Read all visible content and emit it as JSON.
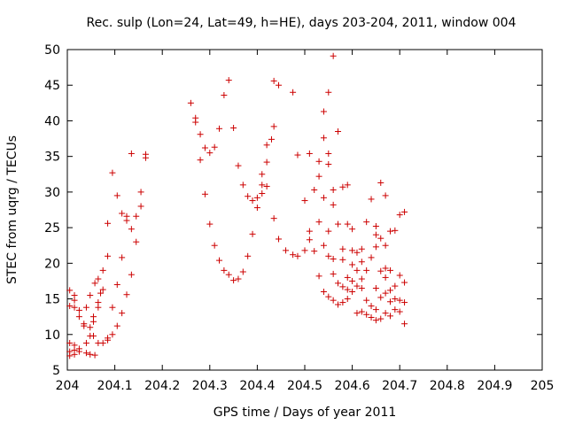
{
  "chart_data": {
    "type": "scatter",
    "title": "Rec. sulp (Lon=24, Lat=49, h=HE), days 203-204, 2011, window 004",
    "xlabel": "GPS time / Days of year 2011",
    "ylabel": "STEC from uqrg / TECUs",
    "xlim": [
      204,
      205
    ],
    "ylim": [
      5,
      50
    ],
    "xticks": [
      "204",
      "204.1",
      "204.2",
      "204.3",
      "204.4",
      "204.5",
      "204.6",
      "204.7",
      "204.8",
      "204.9",
      "205"
    ],
    "yticks": [
      "5",
      "10",
      "15",
      "20",
      "25",
      "30",
      "35",
      "40",
      "45",
      "50"
    ],
    "grid": false,
    "marker": "plus",
    "color": "#cc0000",
    "series": [
      {
        "name": "",
        "points": [
          [
            204.005,
            16.2
          ],
          [
            204.005,
            14.0
          ],
          [
            204.005,
            8.8
          ],
          [
            204.005,
            7.6
          ],
          [
            204.005,
            7.0
          ],
          [
            204.015,
            15.5
          ],
          [
            204.015,
            14.8
          ],
          [
            204.015,
            13.8
          ],
          [
            204.015,
            8.5
          ],
          [
            204.015,
            7.8
          ],
          [
            204.015,
            7.2
          ],
          [
            204.025,
            13.4
          ],
          [
            204.025,
            12.5
          ],
          [
            204.025,
            8.0
          ],
          [
            204.025,
            7.6
          ],
          [
            204.035,
            11.5
          ],
          [
            204.035,
            11.2
          ],
          [
            204.04,
            13.8
          ],
          [
            204.04,
            8.8
          ],
          [
            204.04,
            7.4
          ],
          [
            204.048,
            15.5
          ],
          [
            204.048,
            11.0
          ],
          [
            204.048,
            9.8
          ],
          [
            204.048,
            7.2
          ],
          [
            204.055,
            12.5
          ],
          [
            204.055,
            11.8
          ],
          [
            204.055,
            9.8
          ],
          [
            204.058,
            17.2
          ],
          [
            204.058,
            7.1
          ],
          [
            204.065,
            14.5
          ],
          [
            204.065,
            13.8
          ],
          [
            204.065,
            17.8
          ],
          [
            204.065,
            8.8
          ],
          [
            204.07,
            15.8
          ],
          [
            204.075,
            19.0
          ],
          [
            204.075,
            16.3
          ],
          [
            204.075,
            8.8
          ],
          [
            204.085,
            25.6
          ],
          [
            204.085,
            21.0
          ],
          [
            204.085,
            9.2
          ],
          [
            204.085,
            9.5
          ],
          [
            204.095,
            32.7
          ],
          [
            204.095,
            13.8
          ],
          [
            204.095,
            10.0
          ],
          [
            204.105,
            29.5
          ],
          [
            204.105,
            17.0
          ],
          [
            204.105,
            11.2
          ],
          [
            204.115,
            27.0
          ],
          [
            204.115,
            20.8
          ],
          [
            204.115,
            13.0
          ],
          [
            204.125,
            26.6
          ],
          [
            204.125,
            26.0
          ],
          [
            204.125,
            15.6
          ],
          [
            204.135,
            35.4
          ],
          [
            204.135,
            24.8
          ],
          [
            204.135,
            18.4
          ],
          [
            204.145,
            26.6
          ],
          [
            204.145,
            23.0
          ],
          [
            204.155,
            30.0
          ],
          [
            204.155,
            28.0
          ],
          [
            204.165,
            35.3
          ],
          [
            204.165,
            34.8
          ],
          [
            204.26,
            42.5
          ],
          [
            204.27,
            40.4
          ],
          [
            204.27,
            39.8
          ],
          [
            204.28,
            38.1
          ],
          [
            204.28,
            34.5
          ],
          [
            204.29,
            36.2
          ],
          [
            204.29,
            29.7
          ],
          [
            204.3,
            35.5
          ],
          [
            204.3,
            25.5
          ],
          [
            204.31,
            36.3
          ],
          [
            204.31,
            22.5
          ],
          [
            204.32,
            38.9
          ],
          [
            204.32,
            20.4
          ],
          [
            204.33,
            43.6
          ],
          [
            204.33,
            19.0
          ],
          [
            204.34,
            45.7
          ],
          [
            204.34,
            18.4
          ],
          [
            204.35,
            39.0
          ],
          [
            204.35,
            17.6
          ],
          [
            204.36,
            33.7
          ],
          [
            204.36,
            17.8
          ],
          [
            204.37,
            31.0
          ],
          [
            204.37,
            18.8
          ],
          [
            204.38,
            29.4
          ],
          [
            204.38,
            21.0
          ],
          [
            204.39,
            28.8
          ],
          [
            204.39,
            24.1
          ],
          [
            204.4,
            29.2
          ],
          [
            204.4,
            27.8
          ],
          [
            204.41,
            32.5
          ],
          [
            204.41,
            31.0
          ],
          [
            204.41,
            29.8
          ],
          [
            204.42,
            36.6
          ],
          [
            204.42,
            34.2
          ],
          [
            204.42,
            30.8
          ],
          [
            204.43,
            37.4
          ],
          [
            204.435,
            45.6
          ],
          [
            204.435,
            39.2
          ],
          [
            204.435,
            26.3
          ],
          [
            204.445,
            45.0
          ],
          [
            204.445,
            23.4
          ],
          [
            204.46,
            21.8
          ],
          [
            204.475,
            44.0
          ],
          [
            204.475,
            21.2
          ],
          [
            204.485,
            35.2
          ],
          [
            204.485,
            21.0
          ],
          [
            204.5,
            28.8
          ],
          [
            204.5,
            21.8
          ],
          [
            204.51,
            35.4
          ],
          [
            204.51,
            24.5
          ],
          [
            204.51,
            23.3
          ],
          [
            204.52,
            30.3
          ],
          [
            204.52,
            21.7
          ],
          [
            204.53,
            34.3
          ],
          [
            204.53,
            32.2
          ],
          [
            204.53,
            25.8
          ],
          [
            204.53,
            18.2
          ],
          [
            204.54,
            41.3
          ],
          [
            204.54,
            37.6
          ],
          [
            204.54,
            29.2
          ],
          [
            204.54,
            22.5
          ],
          [
            204.54,
            16.0
          ],
          [
            204.55,
            44.0
          ],
          [
            204.55,
            35.4
          ],
          [
            204.55,
            33.9
          ],
          [
            204.55,
            24.5
          ],
          [
            204.55,
            21.0
          ],
          [
            204.55,
            15.3
          ],
          [
            204.56,
            49.1
          ],
          [
            204.56,
            30.3
          ],
          [
            204.56,
            28.2
          ],
          [
            204.56,
            20.6
          ],
          [
            204.56,
            18.5
          ],
          [
            204.56,
            14.8
          ],
          [
            204.57,
            38.5
          ],
          [
            204.57,
            25.5
          ],
          [
            204.57,
            17.2
          ],
          [
            204.57,
            14.2
          ],
          [
            204.58,
            30.7
          ],
          [
            204.58,
            22.0
          ],
          [
            204.58,
            20.5
          ],
          [
            204.58,
            16.7
          ],
          [
            204.58,
            14.5
          ],
          [
            204.59,
            31.0
          ],
          [
            204.59,
            25.5
          ],
          [
            204.59,
            18.0
          ],
          [
            204.59,
            16.3
          ],
          [
            204.59,
            15.0
          ],
          [
            204.6,
            24.8
          ],
          [
            204.6,
            21.8
          ],
          [
            204.6,
            19.8
          ],
          [
            204.6,
            17.5
          ],
          [
            204.6,
            16.0
          ],
          [
            204.61,
            21.5
          ],
          [
            204.61,
            19.0
          ],
          [
            204.61,
            16.8
          ],
          [
            204.61,
            13.0
          ],
          [
            204.62,
            22.0
          ],
          [
            204.62,
            20.2
          ],
          [
            204.62,
            17.8
          ],
          [
            204.62,
            16.5
          ],
          [
            204.62,
            13.2
          ],
          [
            204.63,
            25.8
          ],
          [
            204.63,
            19.0
          ],
          [
            204.63,
            14.8
          ],
          [
            204.63,
            12.8
          ],
          [
            204.64,
            29.0
          ],
          [
            204.64,
            20.8
          ],
          [
            204.64,
            14.0
          ],
          [
            204.64,
            12.4
          ],
          [
            204.65,
            25.2
          ],
          [
            204.65,
            24.0
          ],
          [
            204.65,
            22.3
          ],
          [
            204.65,
            16.5
          ],
          [
            204.65,
            13.5
          ],
          [
            204.65,
            12.0
          ],
          [
            204.66,
            31.3
          ],
          [
            204.66,
            23.5
          ],
          [
            204.66,
            18.9
          ],
          [
            204.66,
            15.2
          ],
          [
            204.66,
            12.2
          ],
          [
            204.67,
            29.5
          ],
          [
            204.67,
            22.5
          ],
          [
            204.67,
            19.3
          ],
          [
            204.67,
            18.0
          ],
          [
            204.67,
            15.8
          ],
          [
            204.67,
            13.0
          ],
          [
            204.68,
            24.5
          ],
          [
            204.68,
            19.0
          ],
          [
            204.68,
            16.2
          ],
          [
            204.68,
            14.6
          ],
          [
            204.68,
            12.6
          ],
          [
            204.69,
            24.6
          ],
          [
            204.69,
            16.8
          ],
          [
            204.69,
            15.0
          ],
          [
            204.69,
            13.5
          ],
          [
            204.7,
            26.8
          ],
          [
            204.7,
            18.3
          ],
          [
            204.7,
            14.8
          ],
          [
            204.7,
            13.2
          ],
          [
            204.71,
            27.2
          ],
          [
            204.71,
            17.3
          ],
          [
            204.71,
            14.5
          ],
          [
            204.71,
            11.5
          ]
        ]
      }
    ]
  }
}
